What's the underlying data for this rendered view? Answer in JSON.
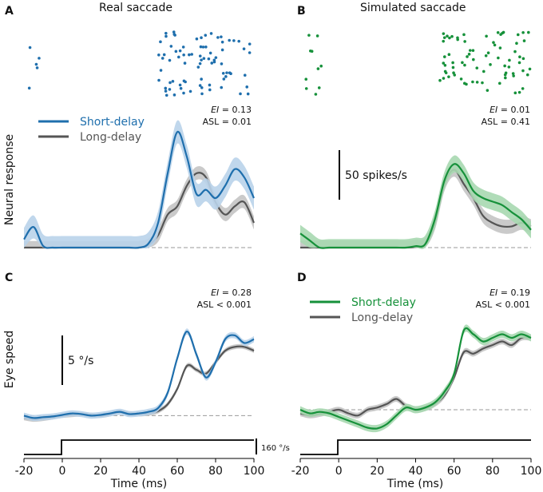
{
  "panels": {
    "a": {
      "letter": "A",
      "title": "Real saccade",
      "ei_label": "EI",
      "ei_value": " = 0.13",
      "asl_text": "ASL = 0.01",
      "ylabel": "Neural response"
    },
    "b": {
      "letter": "B",
      "title": "Simulated saccade",
      "ei_label": "EI",
      "ei_value": " = 0.01",
      "asl_text": "ASL = 0.41",
      "scale_text": "50 spikes/s"
    },
    "c": {
      "letter": "C",
      "ei_label": "EI",
      "ei_value": " = 0.28",
      "asl_text": "ASL < 0.001",
      "ylabel": "Eye speed",
      "scale_text": "5 °/s",
      "saccade_scale_text": "160 °/s"
    },
    "d": {
      "letter": "D",
      "ei_label": "EI",
      "ei_value": " = 0.19",
      "asl_text": "ASL < 0.001"
    }
  },
  "legend_top": {
    "short": "Short-delay",
    "long": "Long-delay"
  },
  "legend_bottom": {
    "short": "Short-delay",
    "long": "Long-delay"
  },
  "colors": {
    "blue": "#1f6fad",
    "blue_band": "#b9d3ea",
    "green": "#16913a",
    "green_band": "#a7d8b0",
    "gray": "#555555",
    "gray_band": "#c4c4c4",
    "baseline": "#999999"
  },
  "chart_data": [
    {
      "type": "line",
      "panel": "A",
      "title": "Real saccade",
      "ylabel": "Neural response",
      "xlim": [
        -20,
        100
      ],
      "ylim": [
        0,
        150
      ],
      "x": [
        -20,
        -15,
        -10,
        -5,
        0,
        5,
        10,
        15,
        20,
        25,
        30,
        35,
        40,
        45,
        50,
        55,
        60,
        65,
        70,
        75,
        80,
        85,
        90,
        95,
        100
      ],
      "series": [
        {
          "name": "Short-delay",
          "color": "blue",
          "values": [
            10,
            25,
            2,
            0,
            0,
            0,
            0,
            0,
            0,
            0,
            0,
            0,
            0,
            5,
            30,
            90,
            140,
            110,
            65,
            70,
            60,
            75,
            95,
            85,
            60
          ],
          "band": 14
        },
        {
          "name": "Long-delay",
          "color": "gray",
          "values": [
            0,
            0,
            0,
            0,
            0,
            0,
            0,
            0,
            0,
            0,
            0,
            0,
            0,
            3,
            15,
            40,
            50,
            75,
            90,
            85,
            55,
            40,
            50,
            55,
            30
          ],
          "band": 8
        }
      ],
      "raster": {
        "early_dots": 5,
        "late_dots": 80
      }
    },
    {
      "type": "line",
      "panel": "B",
      "title": "Simulated saccade",
      "xlim": [
        -20,
        100
      ],
      "ylim": [
        0,
        150
      ],
      "scale_bar": "50 spikes/s",
      "x": [
        -20,
        -15,
        -10,
        -5,
        0,
        5,
        10,
        15,
        20,
        25,
        30,
        35,
        40,
        45,
        50,
        55,
        60,
        65,
        70,
        75,
        80,
        85,
        90,
        95,
        100
      ],
      "series": [
        {
          "name": "Short-delay",
          "color": "green",
          "values": [
            20,
            10,
            0,
            0,
            0,
            0,
            0,
            0,
            0,
            0,
            0,
            0,
            2,
            5,
            40,
            95,
            118,
            105,
            80,
            70,
            65,
            60,
            50,
            40,
            25
          ],
          "band": 12
        },
        {
          "name": "Long-delay",
          "color": "gray",
          "values": [
            0,
            0,
            0,
            0,
            0,
            0,
            0,
            0,
            0,
            0,
            0,
            0,
            1,
            4,
            35,
            90,
            110,
            90,
            70,
            45,
            35,
            30,
            30,
            35,
            30
          ],
          "band": 10
        }
      ],
      "raster": {
        "early_dots": 10,
        "late_dots": 75
      }
    },
    {
      "type": "line",
      "panel": "C",
      "ylabel": "Eye speed",
      "xlabel": "Time (ms)",
      "xlim": [
        -20,
        100
      ],
      "ylim": [
        -1,
        13
      ],
      "xticks": [
        -20,
        0,
        20,
        40,
        60,
        80,
        100
      ],
      "scale_bar": "5 °/s",
      "saccade_trace_scale": "160 °/s",
      "x": [
        -20,
        -15,
        -10,
        -5,
        0,
        5,
        10,
        15,
        20,
        25,
        30,
        35,
        40,
        45,
        50,
        55,
        60,
        65,
        70,
        75,
        80,
        85,
        90,
        95,
        100
      ],
      "series": [
        {
          "name": "Short-delay",
          "color": "blue",
          "values": [
            0,
            -0.3,
            -0.2,
            -0.1,
            0.1,
            0.3,
            0.2,
            0.0,
            0.1,
            0.3,
            0.5,
            0.2,
            0.3,
            0.5,
            1.0,
            3.0,
            7.5,
            11.0,
            8.0,
            5.0,
            7.0,
            10.0,
            10.5,
            9.5,
            10.0
          ],
          "band": 0.4
        },
        {
          "name": "Long-delay",
          "color": "gray",
          "values": [
            -0.3,
            -0.5,
            -0.4,
            -0.2,
            0.0,
            0.1,
            0.2,
            0.1,
            0.0,
            0.2,
            0.5,
            0.3,
            0.2,
            0.3,
            0.6,
            1.5,
            3.5,
            6.5,
            6.0,
            5.5,
            7.0,
            8.5,
            9.0,
            9.0,
            8.5
          ],
          "band": 0.3
        }
      ]
    },
    {
      "type": "line",
      "panel": "D",
      "xlabel": "Time (ms)",
      "xlim": [
        -20,
        100
      ],
      "ylim": [
        -3,
        13
      ],
      "xticks": [
        -20,
        0,
        20,
        40,
        60,
        80,
        100
      ],
      "x": [
        -20,
        -15,
        -10,
        -5,
        0,
        5,
        10,
        15,
        20,
        25,
        30,
        35,
        40,
        45,
        50,
        55,
        60,
        65,
        70,
        75,
        80,
        85,
        90,
        95,
        100
      ],
      "series": [
        {
          "name": "Short-delay",
          "color": "green",
          "values": [
            0,
            -0.5,
            -0.3,
            -0.5,
            -1.0,
            -1.5,
            -2.0,
            -2.5,
            -2.6,
            -2.0,
            -0.8,
            0.3,
            0.0,
            0.3,
            1.0,
            2.5,
            5.0,
            11.0,
            10.5,
            9.5,
            10.0,
            10.5,
            10.0,
            10.5,
            10.0
          ],
          "band": 0.5
        },
        {
          "name": "Long-delay",
          "color": "gray",
          "values": [
            -0.5,
            -0.8,
            -0.6,
            -0.3,
            0.0,
            -0.5,
            -0.8,
            0.0,
            0.3,
            0.8,
            1.5,
            0.5,
            0.0,
            0.2,
            0.8,
            2.0,
            4.5,
            8.0,
            7.8,
            8.5,
            9.0,
            9.5,
            9.0,
            10.0,
            10.0
          ],
          "band": 0.4
        }
      ]
    }
  ]
}
